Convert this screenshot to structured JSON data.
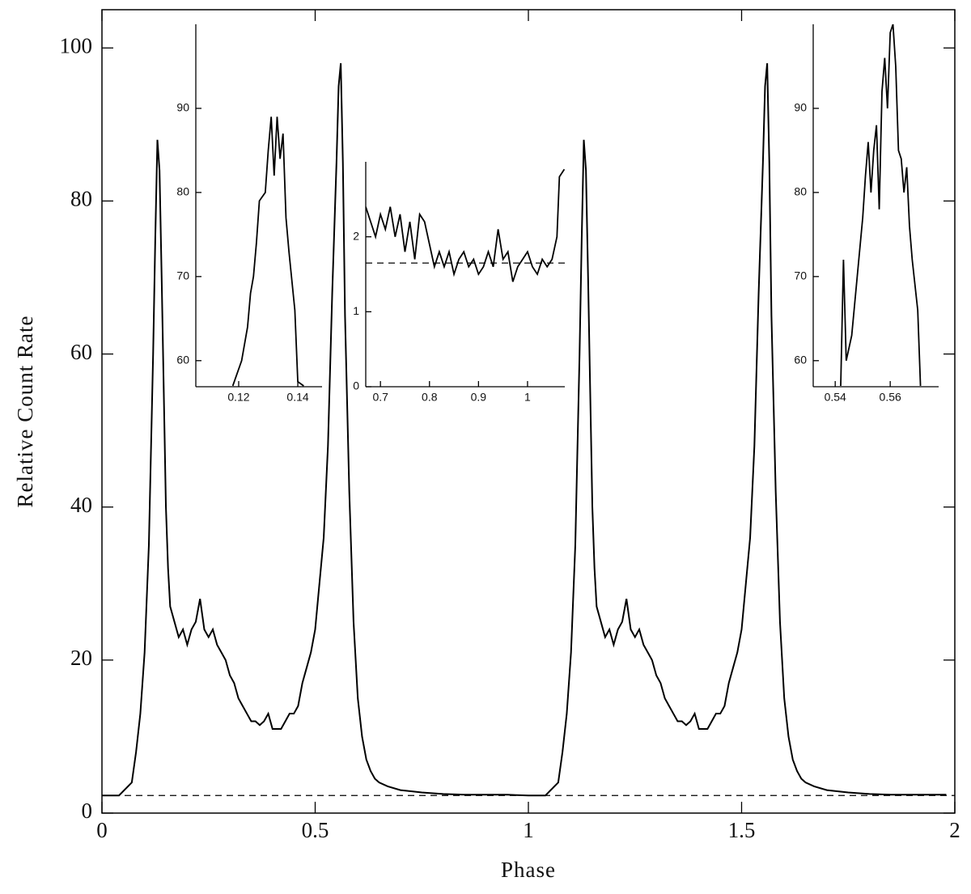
{
  "chart_data": [
    {
      "type": "line",
      "xlabel": "Phase",
      "ylabel": "Relative Count Rate",
      "xlim": [
        0,
        2
      ],
      "ylim": [
        0,
        105
      ],
      "xticks": [
        0,
        0.5,
        1,
        1.5,
        2
      ],
      "yticks": [
        0,
        20,
        40,
        60,
        80,
        100
      ],
      "baseline": 2.3,
      "color": "#000000",
      "x": [
        0,
        0.04,
        0.07,
        0.08,
        0.09,
        0.1,
        0.11,
        0.12,
        0.125,
        0.13,
        0.135,
        0.14,
        0.145,
        0.15,
        0.155,
        0.16,
        0.17,
        0.18,
        0.19,
        0.2,
        0.21,
        0.22,
        0.23,
        0.24,
        0.25,
        0.26,
        0.27,
        0.28,
        0.29,
        0.3,
        0.31,
        0.32,
        0.33,
        0.34,
        0.35,
        0.36,
        0.37,
        0.38,
        0.39,
        0.4,
        0.41,
        0.42,
        0.43,
        0.44,
        0.45,
        0.46,
        0.47,
        0.48,
        0.49,
        0.5,
        0.51,
        0.52,
        0.53,
        0.54,
        0.55,
        0.555,
        0.56,
        0.565,
        0.57,
        0.58,
        0.59,
        0.6,
        0.61,
        0.62,
        0.63,
        0.64,
        0.65,
        0.67,
        0.7,
        0.75,
        0.8,
        0.85,
        0.9,
        0.95,
        1,
        1.04,
        1.07,
        1.08,
        1.09,
        1.1,
        1.11,
        1.12,
        1.125,
        1.13,
        1.135,
        1.14,
        1.145,
        1.15,
        1.155,
        1.16,
        1.17,
        1.18,
        1.19,
        1.2,
        1.21,
        1.22,
        1.23,
        1.24,
        1.25,
        1.26,
        1.27,
        1.28,
        1.29,
        1.3,
        1.31,
        1.32,
        1.33,
        1.34,
        1.35,
        1.36,
        1.37,
        1.38,
        1.39,
        1.4,
        1.41,
        1.42,
        1.43,
        1.44,
        1.45,
        1.46,
        1.47,
        1.48,
        1.49,
        1.5,
        1.51,
        1.52,
        1.53,
        1.54,
        1.55,
        1.555,
        1.56,
        1.565,
        1.57,
        1.58,
        1.59,
        1.6,
        1.61,
        1.62,
        1.63,
        1.64,
        1.65,
        1.67,
        1.7,
        1.75,
        1.8,
        1.85,
        1.9,
        1.95,
        1.98
      ],
      "values": [
        2.3,
        2.3,
        4,
        8,
        13,
        21,
        35,
        60,
        75,
        88,
        84,
        70,
        55,
        40,
        32,
        27,
        25,
        23,
        24,
        22,
        24,
        25,
        28,
        24,
        23,
        24,
        22,
        21,
        20,
        18,
        17,
        15,
        14,
        13,
        12,
        12,
        11.5,
        12,
        13,
        11,
        11,
        11,
        12,
        13,
        13,
        14,
        17,
        19,
        21,
        24,
        30,
        36,
        48,
        68,
        85,
        95,
        98,
        85,
        65,
        42,
        25,
        15,
        10,
        7,
        5.5,
        4.5,
        4,
        3.5,
        3,
        2.7,
        2.5,
        2.4,
        2.4,
        2.4,
        2.3,
        2.3,
        4,
        8,
        13,
        21,
        35,
        60,
        75,
        88,
        84,
        70,
        55,
        40,
        32,
        27,
        25,
        23,
        24,
        22,
        24,
        25,
        28,
        24,
        23,
        24,
        22,
        21,
        20,
        18,
        17,
        15,
        14,
        13,
        12,
        12,
        11.5,
        12,
        13,
        11,
        11,
        11,
        12,
        13,
        13,
        14,
        17,
        19,
        21,
        24,
        30,
        36,
        48,
        68,
        85,
        95,
        98,
        85,
        65,
        42,
        25,
        15,
        10,
        7,
        5.5,
        4.5,
        4,
        3.5,
        3,
        2.7,
        2.5,
        2.4,
        2.4,
        2.4,
        2.4
      ]
    },
    {
      "type": "line",
      "xlim": [
        0.1055,
        0.1482
      ],
      "ylim": [
        56.9,
        100
      ],
      "xticks": [
        0.12,
        0.14
      ],
      "yticks": [
        60,
        70,
        80,
        90
      ],
      "color": "#000000",
      "x": [
        0.118,
        0.121,
        0.123,
        0.124,
        0.125,
        0.126,
        0.127,
        0.129,
        0.13,
        0.131,
        0.132,
        0.133,
        0.134,
        0.135,
        0.136,
        0.137,
        0.139,
        0.14,
        0.142
      ],
      "values": [
        57,
        60,
        64,
        68,
        70,
        74,
        79,
        80,
        85,
        89,
        82,
        89,
        84,
        87,
        77,
        73,
        66,
        57.5,
        57
      ]
    },
    {
      "type": "line",
      "xlim": [
        0.67,
        1.076
      ],
      "ylim": [
        0,
        3
      ],
      "xticks": [
        0.7,
        0.8,
        0.9,
        1
      ],
      "yticks": [
        0,
        1,
        2
      ],
      "baseline": 1.65,
      "color": "#000000",
      "x": [
        0.67,
        0.68,
        0.69,
        0.7,
        0.71,
        0.72,
        0.73,
        0.74,
        0.75,
        0.76,
        0.77,
        0.78,
        0.79,
        0.8,
        0.81,
        0.82,
        0.83,
        0.84,
        0.85,
        0.86,
        0.87,
        0.88,
        0.89,
        0.9,
        0.91,
        0.92,
        0.93,
        0.94,
        0.95,
        0.96,
        0.97,
        0.98,
        0.99,
        1,
        1.01,
        1.02,
        1.03,
        1.04,
        1.05,
        1.06,
        1.065,
        1.075
      ],
      "values": [
        2.4,
        2.2,
        2.0,
        2.3,
        2.1,
        2.4,
        2.0,
        2.3,
        1.8,
        2.2,
        1.7,
        2.3,
        2.2,
        1.9,
        1.6,
        1.8,
        1.6,
        1.8,
        1.5,
        1.7,
        1.8,
        1.6,
        1.7,
        1.5,
        1.6,
        1.8,
        1.6,
        2.1,
        1.7,
        1.8,
        1.4,
        1.6,
        1.7,
        1.8,
        1.6,
        1.5,
        1.7,
        1.6,
        1.7,
        2.0,
        2.8,
        2.9
      ]
    },
    {
      "type": "line",
      "xlim": [
        0.532,
        0.5776
      ],
      "ylim": [
        56.9,
        100
      ],
      "xticks": [
        0.54,
        0.56
      ],
      "yticks": [
        60,
        70,
        80,
        90
      ],
      "color": "#000000",
      "x": [
        0.542,
        0.543,
        0.544,
        0.546,
        0.548,
        0.55,
        0.551,
        0.552,
        0.553,
        0.554,
        0.555,
        0.556,
        0.557,
        0.558,
        0.559,
        0.56,
        0.561,
        0.562,
        0.563,
        0.564,
        0.565,
        0.566,
        0.567,
        0.568,
        0.57,
        0.571
      ],
      "values": [
        57,
        72,
        60,
        63,
        70,
        77,
        82,
        86,
        80,
        85,
        88,
        78,
        92,
        96,
        90,
        99,
        100,
        95,
        85,
        84,
        80,
        83,
        76,
        72,
        66,
        57
      ]
    }
  ]
}
